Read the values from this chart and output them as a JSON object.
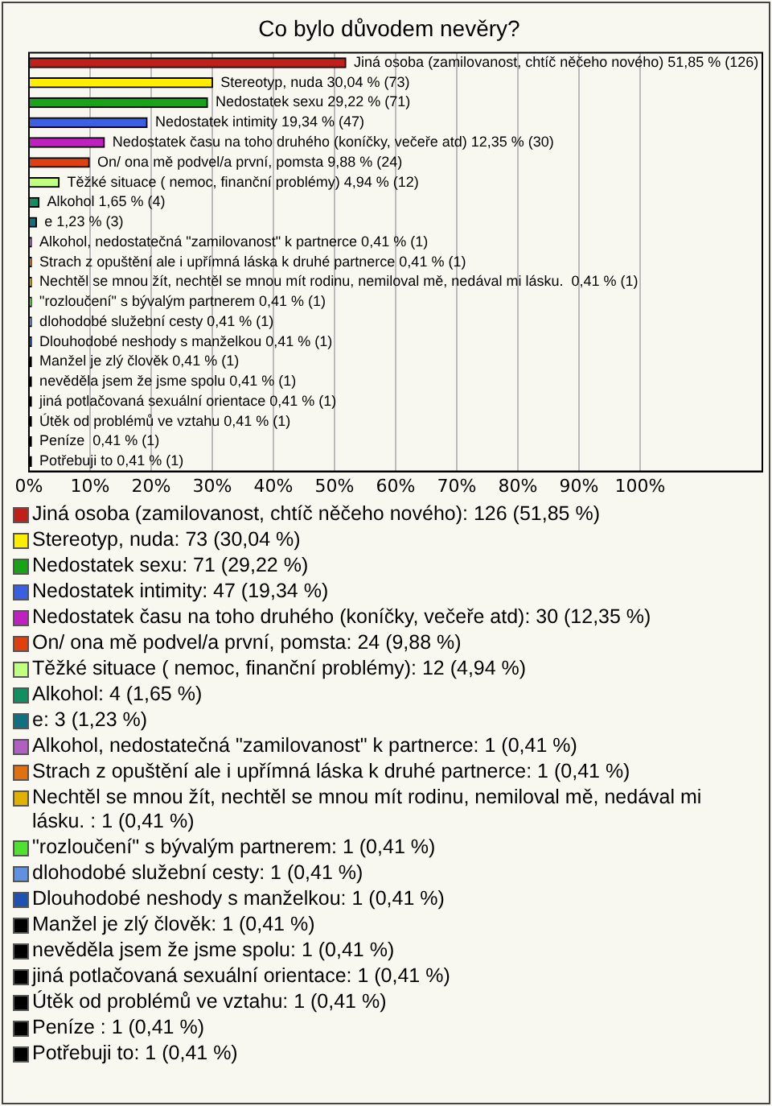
{
  "chart_data": {
    "type": "bar",
    "orientation": "horizontal",
    "title": "Co bylo důvodem nevěry?",
    "categories": [
      "Jiná osoba (zamilovanost, chtíč něčeho nového)",
      "Stereotyp, nuda",
      "Nedostatek sexu",
      "Nedostatek intimity",
      "Nedostatek času na toho druhého (koníčky, večeře atd)",
      "On/ ona mě podvel/a první, pomsta",
      "Těžké situace ( nemoc, finanční problémy)",
      "Alkohol",
      "e",
      "Alkohol, nedostatečná \"zamilovanost\" k partnerce",
      "Strach z opuštění ale i upřímná láska k druhé partnerce",
      "Nechtěl se mnou žít, nechtěl se mnou mít rodinu, nemiloval mě, nedával mi lásku. ",
      "\"rozloučení\" s bývalým partnerem",
      "dlohodobé služební cesty",
      "Dlouhodobé neshody s manželkou",
      "Manžel je zlý člověk",
      "nevěděla jsem že jsme spolu",
      "jiná potlačovaná sexuální orientace",
      "Útěk od problémů ve vztahu",
      "Peníze ",
      "Potřebuji to"
    ],
    "values": [
      51.85,
      30.04,
      29.22,
      19.34,
      12.35,
      9.88,
      4.94,
      1.65,
      1.23,
      0.41,
      0.41,
      0.41,
      0.41,
      0.41,
      0.41,
      0.41,
      0.41,
      0.41,
      0.41,
      0.41,
      0.41
    ],
    "value_labels": [
      "51,85 % (126)",
      "30,04 % (73)",
      "29,22 % (71)",
      "19,34 % (47)",
      "12,35 % (30)",
      "9,88 % (24)",
      "4,94 % (12)",
      "1,65 % (4)",
      "1,23 % (3)",
      "0,41 % (1)",
      "0,41 % (1)",
      "0,41 % (1)",
      "0,41 % (1)",
      "0,41 % (1)",
      "0,41 % (1)",
      "0,41 % (1)",
      "0,41 % (1)",
      "0,41 % (1)",
      "0,41 % (1)",
      "0,41 % (1)",
      "0,41 % (1)"
    ],
    "colors": [
      "#c0201a",
      "#ffee00",
      "#19a319",
      "#3a5fe0",
      "#c020c0",
      "#e04010",
      "#c0ff80",
      "#109060",
      "#107080",
      "#b060c0",
      "#e07010",
      "#e0b000",
      "#50e030",
      "#6090e0",
      "#2050b0",
      "#000000",
      "#000000",
      "#000000",
      "#000000",
      "#000000",
      "#000000"
    ],
    "xlim": [
      0,
      120
    ],
    "xticks": [
      {
        "value": 0,
        "label": "0%"
      },
      {
        "value": 10,
        "label": "10%"
      },
      {
        "value": 20,
        "label": "20%"
      },
      {
        "value": 30,
        "label": "30%"
      },
      {
        "value": 40,
        "label": "40%"
      },
      {
        "value": 50,
        "label": "50%"
      },
      {
        "value": 60,
        "label": "60%"
      },
      {
        "value": 70,
        "label": "70%"
      },
      {
        "value": 80,
        "label": "80%"
      },
      {
        "value": 90,
        "label": "90%"
      },
      {
        "value": 100,
        "label": "100%"
      }
    ],
    "grid": "x",
    "tick_labels": "x",
    "annotations": [
      "Jiná osoba (zamilovanost, chtíč něčeho nového): 126 (51,85 %)",
      "Stereotyp, nuda: 73 (30,04 %)",
      "Nedostatek sexu: 71 (29,22 %)",
      "Nedostatek intimity: 47 (19,34 %)",
      "Nedostatek času na toho druhého (koníčky, večeře atd): 30 (12,35 %)",
      "On/ ona mě podvel/a první, pomsta: 24 (9,88 %)",
      "Těžké situace ( nemoc, finanční problémy): 12 (4,94 %)",
      "Alkohol: 4 (1,65 %)",
      "e: 3 (1,23 %)",
      "Alkohol, nedostatečná \"zamilovanost\" k partnerce: 1 (0,41 %)",
      "Strach z opuštění ale i upřímná láska k druhé partnerce: 1 (0,41 %)",
      "Nechtěl se mnou žít, nechtěl se mnou mít rodinu, nemiloval mě, nedával mi lásku. : 1 (0,41 %)",
      "\"rozloučení\" s bývalým partnerem: 1 (0,41 %)",
      "dlohodobé služební cesty: 1 (0,41 %)",
      "Dlouhodobé neshody s manželkou: 1 (0,41 %)",
      "Manžel je zlý člověk: 1 (0,41 %)",
      "nevěděla jsem že jsme spolu: 1 (0,41 %)",
      "jiná potlačovaná sexuální orientace: 1 (0,41 %)",
      "Útěk od problémů ve vztahu: 1 (0,41 %)",
      "Peníze : 1 (0,41 %)",
      "Potřebuji to: 1 (0,41 %)"
    ]
  }
}
